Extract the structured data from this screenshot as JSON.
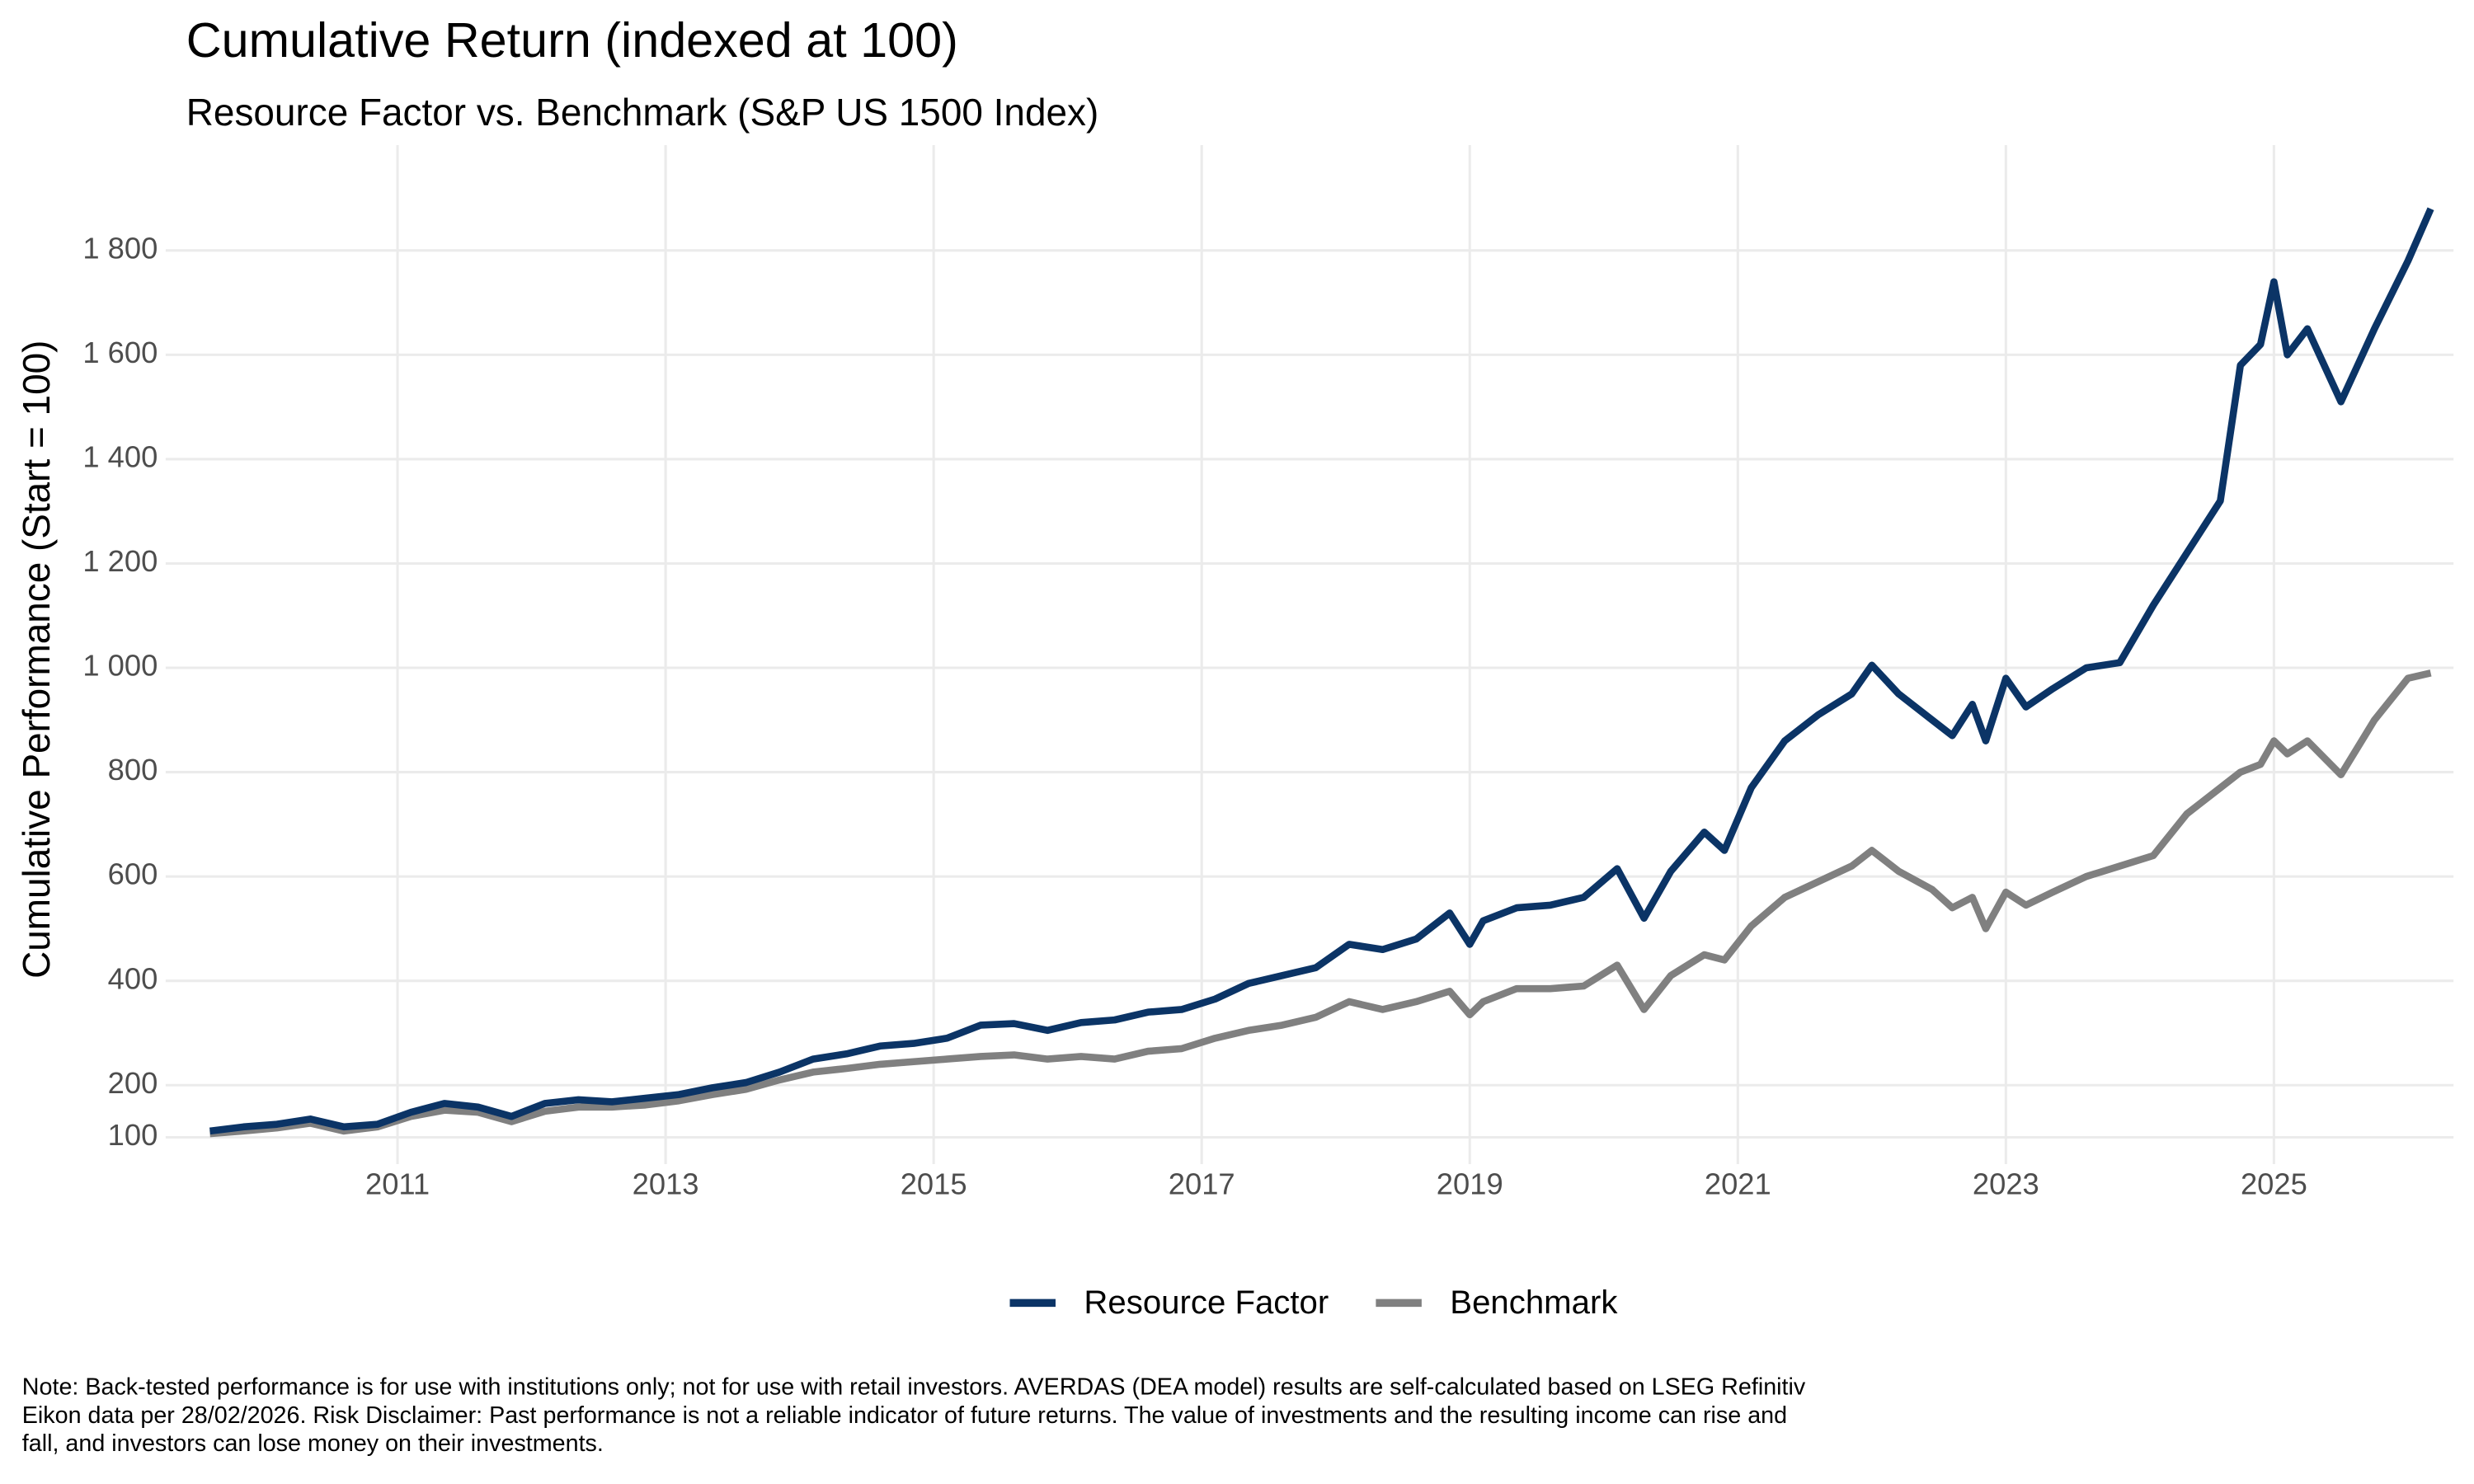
{
  "chart_data": {
    "type": "line",
    "title": "Cumulative Return (indexed at 100)",
    "subtitle": "Resource Factor vs. Benchmark (S&P US 1500 Index)",
    "y_label": "Cumulative Performance (Start = 100)",
    "note": "Note: Back-tested performance is for use with institutions only; not for use with retail investors. AVERDAS (DEA model) results are self-calculated based on LSEG Refinitiv Eikon data per 28/02/2026. Risk Disclaimer: Past performance is not a reliable indicator of future returns. The value of investments and the resulting income can rise and fall, and investors can lose money on their investments.",
    "x": [
      2009.6,
      2009.85,
      2010.1,
      2010.35,
      2010.6,
      2010.85,
      2011.1,
      2011.35,
      2011.6,
      2011.85,
      2012.1,
      2012.35,
      2012.6,
      2012.85,
      2013.1,
      2013.35,
      2013.6,
      2013.85,
      2014.1,
      2014.35,
      2014.6,
      2014.85,
      2015.1,
      2015.35,
      2015.6,
      2015.85,
      2016.1,
      2016.35,
      2016.6,
      2016.85,
      2017.1,
      2017.35,
      2017.6,
      2017.85,
      2018.1,
      2018.35,
      2018.6,
      2018.85,
      2019.0,
      2019.1,
      2019.35,
      2019.6,
      2019.85,
      2020.1,
      2020.3,
      2020.5,
      2020.75,
      2020.9,
      2021.1,
      2021.35,
      2021.6,
      2021.85,
      2022.0,
      2022.2,
      2022.45,
      2022.6,
      2022.75,
      2022.85,
      2023.0,
      2023.15,
      2023.35,
      2023.6,
      2023.85,
      2024.1,
      2024.35,
      2024.6,
      2024.75,
      2024.9,
      2025.0,
      2025.1,
      2025.25,
      2025.5,
      2025.75,
      2026.0,
      2026.17
    ],
    "series": [
      {
        "name": "Resource Factor",
        "color": "#0b3466",
        "values": [
          112,
          120,
          125,
          135,
          120,
          125,
          148,
          165,
          158,
          140,
          165,
          172,
          168,
          175,
          182,
          195,
          205,
          225,
          250,
          260,
          275,
          280,
          290,
          315,
          318,
          305,
          320,
          325,
          340,
          345,
          365,
          395,
          410,
          425,
          470,
          460,
          480,
          530,
          470,
          515,
          540,
          545,
          560,
          615,
          520,
          610,
          685,
          650,
          770,
          860,
          910,
          950,
          1005,
          950,
          900,
          870,
          930,
          860,
          980,
          925,
          960,
          1000,
          1010,
          1120,
          1220,
          1320,
          1580,
          1620,
          1740,
          1600,
          1650,
          1510,
          1650,
          1780,
          1880
        ]
      },
      {
        "name": "Benchmark",
        "color": "#808080",
        "values": [
          107,
          112,
          118,
          127,
          112,
          120,
          140,
          152,
          148,
          130,
          150,
          158,
          158,
          162,
          170,
          182,
          192,
          210,
          225,
          232,
          240,
          245,
          250,
          255,
          258,
          250,
          255,
          250,
          265,
          270,
          290,
          305,
          315,
          330,
          360,
          345,
          360,
          380,
          335,
          360,
          385,
          385,
          390,
          430,
          345,
          410,
          450,
          440,
          505,
          560,
          590,
          620,
          650,
          610,
          575,
          540,
          560,
          500,
          570,
          545,
          570,
          600,
          620,
          640,
          720,
          770,
          800,
          815,
          860,
          835,
          860,
          795,
          900,
          980,
          990
        ]
      }
    ],
    "xlim": [
      2009.27,
      2026.34
    ],
    "xticks": [
      2011,
      2013,
      2015,
      2017,
      2019,
      2021,
      2023,
      2025
    ],
    "ylim": [
      48.6,
      2002
    ],
    "yticks": [
      100,
      200,
      400,
      600,
      800,
      {
        "value": 1000,
        "label": "1 000"
      },
      {
        "value": 1200,
        "label": "1 200"
      },
      {
        "value": 1400,
        "label": "1 400"
      },
      {
        "value": 1600,
        "label": "1 600"
      },
      {
        "value": 1800,
        "label": "1 800"
      }
    ],
    "grid": true,
    "legend": "bottom"
  }
}
